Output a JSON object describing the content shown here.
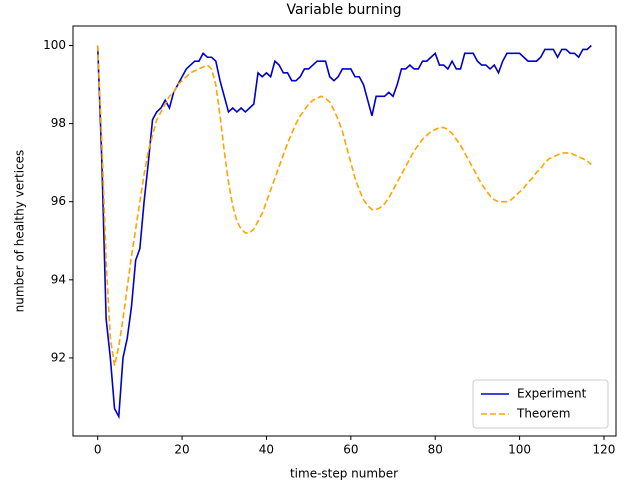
{
  "chart_data": {
    "type": "line",
    "title": "Variable burning",
    "xlabel": "time-step number",
    "ylabel": "number of healthy vertices",
    "x": [
      0,
      1,
      2,
      3,
      4,
      5,
      6,
      7,
      8,
      9,
      10,
      11,
      12,
      13,
      14,
      15,
      16,
      17,
      18,
      19,
      20,
      21,
      22,
      23,
      24,
      25,
      26,
      27,
      28,
      29,
      30,
      31,
      32,
      33,
      34,
      35,
      36,
      37,
      38,
      39,
      40,
      41,
      42,
      43,
      44,
      45,
      46,
      47,
      48,
      49,
      50,
      51,
      52,
      53,
      54,
      55,
      56,
      57,
      58,
      59,
      60,
      61,
      62,
      63,
      64,
      65,
      66,
      67,
      68,
      69,
      70,
      71,
      72,
      73,
      74,
      75,
      76,
      77,
      78,
      79,
      80,
      81,
      82,
      83,
      84,
      85,
      86,
      87,
      88,
      89,
      90,
      91,
      92,
      93,
      94,
      95,
      96,
      97,
      98,
      99,
      100,
      101,
      102,
      103,
      104,
      105,
      106,
      107,
      108,
      109,
      110,
      111,
      112,
      113,
      114,
      115,
      116,
      117
    ],
    "series": [
      {
        "name": "Experiment",
        "color": "#0000cd",
        "style": "solid",
        "values": [
          100,
          97,
          93,
          92,
          90.7,
          90.5,
          92,
          92.5,
          93.3,
          94.5,
          94.8,
          96,
          97,
          98.1,
          98.3,
          98.4,
          98.6,
          98.4,
          98.8,
          99,
          99.2,
          99.4,
          99.5,
          99.6,
          99.6,
          99.8,
          99.7,
          99.7,
          99.6,
          99.1,
          98.7,
          98.3,
          98.4,
          98.3,
          98.4,
          98.3,
          98.4,
          98.5,
          99.3,
          99.2,
          99.3,
          99.2,
          99.6,
          99.5,
          99.3,
          99.3,
          99.1,
          99.1,
          99.2,
          99.4,
          99.4,
          99.5,
          99.6,
          99.6,
          99.6,
          99.2,
          99.1,
          99.2,
          99.4,
          99.4,
          99.4,
          99.2,
          99.2,
          99.0,
          98.6,
          98.2,
          98.7,
          98.7,
          98.7,
          98.8,
          98.7,
          99.0,
          99.4,
          99.4,
          99.5,
          99.4,
          99.4,
          99.6,
          99.6,
          99.7,
          99.8,
          99.5,
          99.5,
          99.4,
          99.6,
          99.4,
          99.4,
          99.8,
          99.8,
          99.8,
          99.6,
          99.5,
          99.5,
          99.4,
          99.5,
          99.3,
          99.6,
          99.8,
          99.8,
          99.8,
          99.8,
          99.7,
          99.6,
          99.6,
          99.6,
          99.7,
          99.9,
          99.9,
          99.9,
          99.7,
          99.9,
          99.9,
          99.8,
          99.8,
          99.7,
          99.9,
          99.9,
          100
        ]
      },
      {
        "name": "Theorem",
        "color": "#ffa500",
        "style": "dashed",
        "values": [
          100,
          97.5,
          94.5,
          92.5,
          91.8,
          92.3,
          93.0,
          93.8,
          94.6,
          95.3,
          96.0,
          96.7,
          97.3,
          97.7,
          98.1,
          98.3,
          98.5,
          98.7,
          98.8,
          99.0,
          99.1,
          99.2,
          99.3,
          99.35,
          99.4,
          99.45,
          99.5,
          99.4,
          99.0,
          98.2,
          97.3,
          96.5,
          95.9,
          95.5,
          95.3,
          95.2,
          95.2,
          95.3,
          95.5,
          95.7,
          96.0,
          96.3,
          96.6,
          96.9,
          97.2,
          97.5,
          97.75,
          98.0,
          98.2,
          98.35,
          98.5,
          98.6,
          98.65,
          98.7,
          98.65,
          98.55,
          98.35,
          98.1,
          97.8,
          97.4,
          97.0,
          96.6,
          96.3,
          96.05,
          95.9,
          95.8,
          95.8,
          95.85,
          95.95,
          96.1,
          96.3,
          96.5,
          96.7,
          96.9,
          97.1,
          97.3,
          97.45,
          97.6,
          97.7,
          97.8,
          97.85,
          97.9,
          97.9,
          97.85,
          97.75,
          97.6,
          97.45,
          97.25,
          97.05,
          96.85,
          96.65,
          96.45,
          96.3,
          96.15,
          96.05,
          96.0,
          96.0,
          96.0,
          96.05,
          96.15,
          96.25,
          96.35,
          96.5,
          96.6,
          96.75,
          96.85,
          97.0,
          97.1,
          97.15,
          97.2,
          97.25,
          97.25,
          97.25,
          97.2,
          97.15,
          97.1,
          97.05,
          96.95
        ]
      }
    ],
    "xlim": [
      -5.85,
      122.85
    ],
    "ylim": [
      90.0,
      100.5
    ],
    "xticks": [
      0,
      20,
      40,
      60,
      80,
      100,
      120
    ],
    "yticks": [
      92,
      94,
      96,
      98,
      100
    ],
    "legend": "lower right"
  }
}
